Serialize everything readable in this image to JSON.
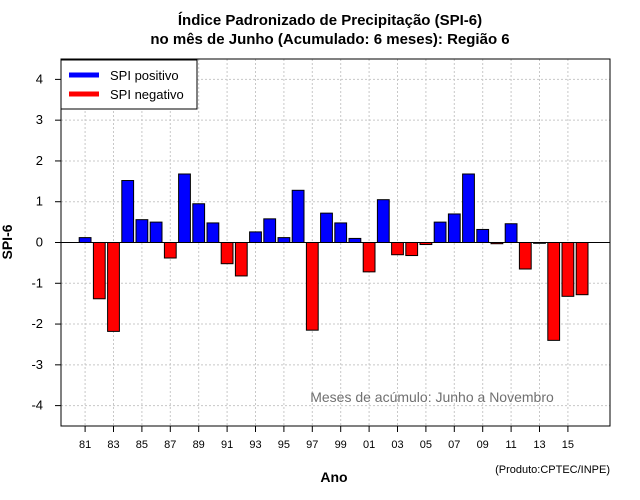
{
  "chart_data": {
    "type": "bar",
    "title_line1": "Índice Padronizado de Precipitação (SPI-6)",
    "title_line2": "no mês de Junho (Acumulado: 6 meses): Região 6",
    "xlabel": "Ano",
    "ylabel": "SPI-6",
    "ylim": [
      -4.5,
      4.5
    ],
    "yticks": [
      4,
      3,
      2,
      1,
      0,
      -1,
      -2,
      -3,
      -4
    ],
    "xtick_labels": [
      "81",
      "83",
      "85",
      "87",
      "89",
      "91",
      "93",
      "95",
      "97",
      "99",
      "01",
      "03",
      "05",
      "07",
      "09",
      "11",
      "13",
      "15"
    ],
    "categories": [
      "1981",
      "1982",
      "1983",
      "1984",
      "1985",
      "1986",
      "1987",
      "1988",
      "1989",
      "1990",
      "1991",
      "1992",
      "1993",
      "1994",
      "1995",
      "1996",
      "1997",
      "1998",
      "1999",
      "2000",
      "2001",
      "2002",
      "2003",
      "2004",
      "2005",
      "2006",
      "2007",
      "2008",
      "2009",
      "2010",
      "2011",
      "2012",
      "2013",
      "2014",
      "2015",
      "2016",
      "2017"
    ],
    "values": [
      0.12,
      -1.38,
      -2.18,
      1.52,
      0.56,
      0.5,
      -0.38,
      1.68,
      0.95,
      0.48,
      -0.52,
      -0.82,
      0.26,
      0.58,
      0.12,
      1.28,
      -2.15,
      0.72,
      0.48,
      0.1,
      -0.72,
      1.05,
      -0.3,
      -0.32,
      -0.05,
      0.5,
      0.7,
      1.68,
      0.32,
      -0.03,
      0.46,
      -0.65,
      0.0,
      -2.4,
      -1.32,
      -1.28,
      null
    ],
    "legend": [
      {
        "label": "SPI positivo",
        "color": "#0000ff"
      },
      {
        "label": "SPI negativo",
        "color": "#ff0000"
      }
    ],
    "legend_position": "top-left",
    "grid": true,
    "annotation": "Meses de acúmulo: Junho a Novembro",
    "credit": "(Produto:CPTEC/INPE)",
    "colors": {
      "positive": "#0000ff",
      "negative": "#ff0000",
      "grid": "#c8c8c8"
    }
  }
}
